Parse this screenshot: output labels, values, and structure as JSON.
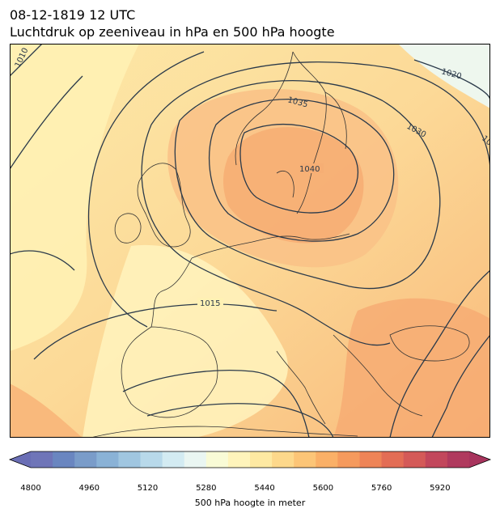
{
  "title": {
    "line1": "08-12-1819 12 UTC",
    "line2": "Luchtdruk op zeeniveau in hPa en 500 hPa hoogte"
  },
  "map": {
    "isobar_labels": [
      "1010",
      "1015",
      "1020",
      "1030",
      "1035",
      "1040",
      "10"
    ],
    "isobar_color": "#2b3a4a",
    "coast_color": "#333333"
  },
  "colorbar": {
    "label": "500 hPa hoogte in meter",
    "ticks": [
      "4800",
      "4960",
      "5120",
      "5280",
      "5440",
      "5600",
      "5760",
      "5920"
    ],
    "range": [
      4800,
      6000
    ],
    "colors": [
      "#6f75b8",
      "#6a86c0",
      "#7a9cc9",
      "#8ab2d6",
      "#a0c6e0",
      "#b8d9ea",
      "#d3ebf2",
      "#eaf6f2",
      "#f9fbd6",
      "#fff4bb",
      "#fee9a2",
      "#fdd88b",
      "#fcc577",
      "#fab067",
      "#f59a5d",
      "#ee8457",
      "#e36d55",
      "#d45a58",
      "#c2475c",
      "#b03a5e"
    ]
  }
}
